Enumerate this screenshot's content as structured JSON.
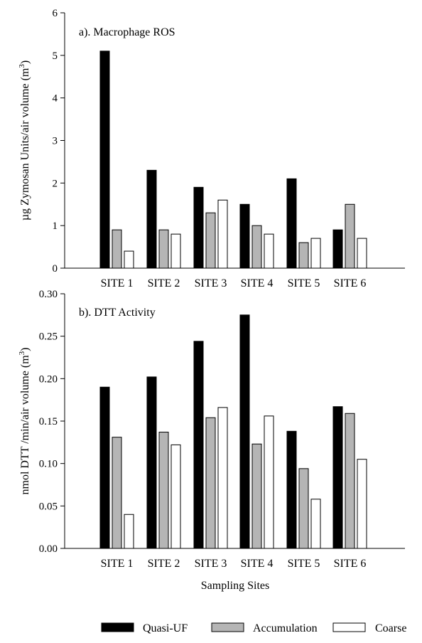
{
  "figure": {
    "xlabel": "Sampling Sites",
    "legend_position": "bottom"
  },
  "legend": [
    {
      "name": "Quasi-UF",
      "color": "#000000"
    },
    {
      "name": "Accumulation",
      "color": "#b5b5b5"
    },
    {
      "name": "Coarse",
      "color": "#ffffff"
    }
  ],
  "chart_data": [
    {
      "type": "bar",
      "title": "a). Macrophage ROS",
      "ylabel": "µg Zymosan Units/air volume (m3)",
      "ylabel_main": "µg Zymosan Units/air volume (m",
      "ylabel_sup": "3",
      "ylabel_end": ")",
      "ylim": [
        0,
        6
      ],
      "yticks": [
        "0",
        "1",
        "2",
        "3",
        "4",
        "5",
        "6"
      ],
      "categories": [
        "SITE 1",
        "SITE 2",
        "SITE 3",
        "SITE 4",
        "SITE 5",
        "SITE 6"
      ],
      "series": [
        {
          "name": "Quasi-UF",
          "values": [
            5.1,
            2.3,
            1.9,
            1.5,
            2.1,
            0.9
          ]
        },
        {
          "name": "Accumulation",
          "values": [
            0.9,
            0.9,
            1.3,
            1.0,
            0.6,
            1.5
          ]
        },
        {
          "name": "Coarse",
          "values": [
            0.4,
            0.8,
            1.6,
            0.8,
            0.7,
            0.7
          ]
        }
      ]
    },
    {
      "type": "bar",
      "title": "b). DTT Activity",
      "ylabel": "nmol DTT /min/air volume (m3)",
      "ylabel_main": "nmol DTT /min/air volume (m",
      "ylabel_sup": "3",
      "ylabel_end": ")",
      "ylim": [
        0,
        0.3
      ],
      "yticks": [
        "0.00",
        "0.05",
        "0.10",
        "0.15",
        "0.20",
        "0.25",
        "0.30"
      ],
      "categories": [
        "SITE 1",
        "SITE 2",
        "SITE 3",
        "SITE 4",
        "SITE 5",
        "SITE 6"
      ],
      "series": [
        {
          "name": "Quasi-UF",
          "values": [
            0.19,
            0.202,
            0.244,
            0.275,
            0.138,
            0.167
          ]
        },
        {
          "name": "Accumulation",
          "values": [
            0.131,
            0.137,
            0.154,
            0.123,
            0.094,
            0.159
          ]
        },
        {
          "name": "Coarse",
          "values": [
            0.04,
            0.122,
            0.166,
            0.156,
            0.058,
            0.105
          ]
        }
      ]
    }
  ]
}
